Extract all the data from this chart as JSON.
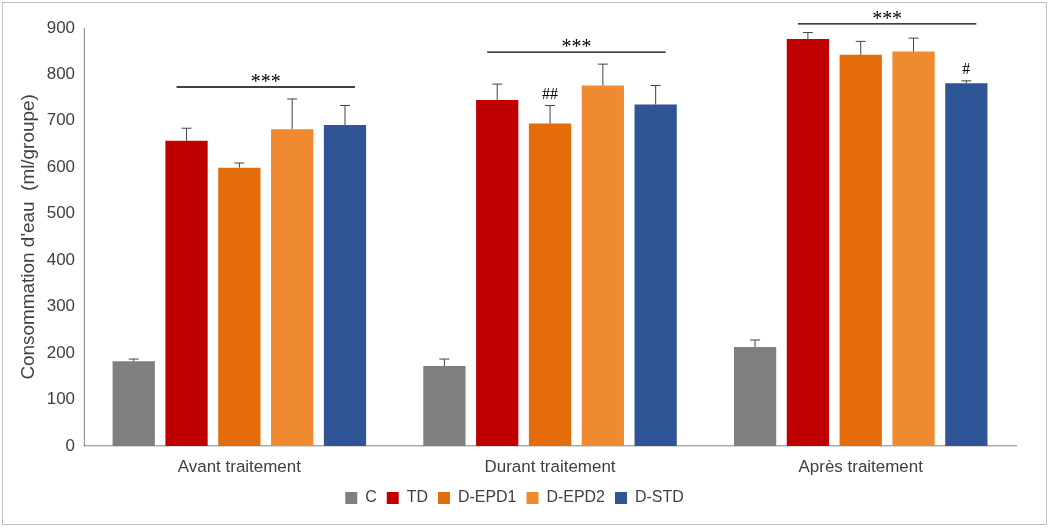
{
  "chart_data": {
    "type": "bar",
    "ylabel": "Consommation d'eau  (ml/groupe)",
    "categories": [
      "Avant traitement",
      "Durant traitement",
      "Après traitement"
    ],
    "series": [
      {
        "name": "C",
        "color": "#7f7f7f",
        "values": [
          182,
          172,
          213
        ],
        "errors": [
          5,
          15,
          15
        ]
      },
      {
        "name": "TD",
        "color": "#c00000",
        "values": [
          657,
          745,
          876
        ],
        "errors": [
          27,
          34,
          14
        ]
      },
      {
        "name": "D-EPD1",
        "color": "#e46c0a",
        "values": [
          599,
          694,
          842
        ],
        "errors": [
          10,
          39,
          29
        ]
      },
      {
        "name": "D-EPD2",
        "color": "#f08a30",
        "values": [
          682,
          776,
          849
        ],
        "errors": [
          65,
          46,
          29
        ]
      },
      {
        "name": "D-STD",
        "color": "#2f5597",
        "values": [
          691,
          735,
          781
        ],
        "errors": [
          42,
          41,
          5
        ]
      }
    ],
    "ylim": [
      0,
      900
    ],
    "yticks": [
      0,
      100,
      200,
      300,
      400,
      500,
      600,
      700,
      800,
      900
    ],
    "grid": false,
    "legend": "bottom",
    "annotations": [
      "***",
      "***",
      "***",
      "##",
      "#"
    ]
  }
}
